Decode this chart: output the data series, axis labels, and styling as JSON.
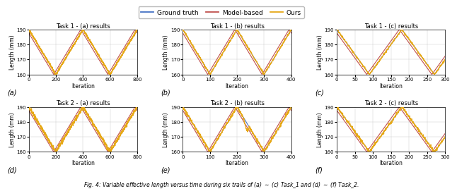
{
  "titles": [
    [
      "Task 1 - (a) results",
      "Task 1 - (b) results",
      "Task 1 - (c) results"
    ],
    [
      "Task 2 - (a) results",
      "Task 2 - (b) results",
      "Task 2 - (c) results"
    ]
  ],
  "xlims": [
    [
      [
        0,
        800
      ],
      [
        0,
        400
      ],
      [
        0,
        300
      ]
    ],
    [
      [
        0,
        800
      ],
      [
        0,
        400
      ],
      [
        0,
        300
      ]
    ]
  ],
  "xticks": [
    [
      [
        0,
        200,
        400,
        600,
        800
      ],
      [
        0,
        100,
        200,
        300,
        400
      ],
      [
        0,
        50,
        100,
        150,
        200,
        250,
        300
      ]
    ],
    [
      [
        0,
        200,
        400,
        600,
        800
      ],
      [
        0,
        100,
        200,
        300,
        400
      ],
      [
        0,
        50,
        100,
        150,
        200,
        250,
        300
      ]
    ]
  ],
  "ylim": [
    160,
    190
  ],
  "yticks": [
    160,
    170,
    180,
    190
  ],
  "ylabel": "Length (mm)",
  "xlabel": "Iteration",
  "subplot_labels": [
    [
      "(a)",
      "(b)",
      "(c)"
    ],
    [
      "(d)",
      "(e)",
      "(f)"
    ]
  ],
  "legend_labels": [
    "Ground truth",
    "Model-based",
    "Ours"
  ],
  "colors": {
    "ground_truth": "#4472c4",
    "model_based": "#c0504d",
    "ours": "#e6a817"
  },
  "caption": "Fig. 4: Variable effective length versus time during six trails of (a) ~ (c) Task_1 and (d) ~ (f) Task_2."
}
